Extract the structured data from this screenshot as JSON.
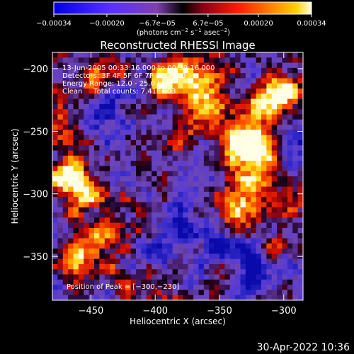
{
  "chart_data": {
    "type": "heatmap",
    "title": "Reconstructed RHESSI Image",
    "xlabel": "Heliocentric X (arcsec)",
    "ylabel": "Heliocentric Y (arcsec)",
    "xlim": [
      -480,
      -285
    ],
    "ylim": [
      -385,
      -187
    ],
    "x_ticks": [
      -450,
      -400,
      -350,
      -300
    ],
    "y_ticks": [
      -200,
      -250,
      -300,
      -350
    ],
    "x_tick_labels": [
      "−450",
      "−400",
      "−350",
      "−300"
    ],
    "y_tick_labels": [
      "−200",
      "−250",
      "−300",
      "−350"
    ],
    "colorbar": {
      "range": [
        -0.00034,
        0.00034
      ],
      "ticks": [
        -0.00034,
        -0.0002,
        -6.7e-05,
        6.7e-05,
        0.0002,
        0.00034
      ],
      "tick_labels": [
        "−0.00034",
        "−0.00020",
        "−6.7e−05",
        "6.7e−05",
        "0.00020",
        "0.00034"
      ],
      "unit_parts": [
        "(photons cm",
        "−2",
        " s",
        "−1",
        " asec",
        "−2",
        ")"
      ]
    },
    "annotations": [
      "13-Jun-2005 00:33:16.000 to 00:39:16.000",
      "Detectors: 3F 4F 5F 6F 7F 8F, Att 0",
      "Energy Range: 12.0 - 25.0 keV",
      "Clean     Total counts: 7.41E+03"
    ],
    "peak_label": "Position of Peak = [−300,−230]",
    "peak_position": [
      -300,
      -230
    ],
    "pixel_grid": [
      48,
      48
    ],
    "bright_sources": [
      {
        "x": -315,
        "y": -230,
        "level": 1.0
      },
      {
        "x": -300,
        "y": -218,
        "level": 0.95
      },
      {
        "x": -320,
        "y": -262,
        "level": 0.95
      },
      {
        "x": -338,
        "y": -258,
        "level": 0.9
      },
      {
        "x": -325,
        "y": -298,
        "level": 0.85
      },
      {
        "x": -340,
        "y": -315,
        "level": 0.75
      },
      {
        "x": -292,
        "y": -308,
        "level": 0.7
      },
      {
        "x": -300,
        "y": -340,
        "level": 0.65
      },
      {
        "x": -466,
        "y": -285,
        "level": 0.9
      },
      {
        "x": -456,
        "y": -300,
        "level": 0.75
      },
      {
        "x": -458,
        "y": -350,
        "level": 0.7
      },
      {
        "x": -440,
        "y": -335,
        "level": 0.55
      },
      {
        "x": -360,
        "y": -220,
        "level": 0.7
      },
      {
        "x": -380,
        "y": -205,
        "level": 0.6
      },
      {
        "x": -400,
        "y": -210,
        "level": 0.55
      },
      {
        "x": -368,
        "y": -245,
        "level": 0.5
      },
      {
        "x": -383,
        "y": -260,
        "level": 0.55
      },
      {
        "x": -440,
        "y": -207,
        "level": 0.55
      },
      {
        "x": -466,
        "y": -248,
        "level": 0.6
      },
      {
        "x": -470,
        "y": -225,
        "level": 0.55
      },
      {
        "x": -420,
        "y": -315,
        "level": 0.45
      },
      {
        "x": -395,
        "y": -370,
        "level": 0.5
      },
      {
        "x": -355,
        "y": -375,
        "level": 0.45
      },
      {
        "x": -430,
        "y": -372,
        "level": 0.4
      },
      {
        "x": -412,
        "y": -248,
        "level": 0.35
      }
    ],
    "dark_regions": [
      {
        "x": -430,
        "y": -240,
        "level": 0.55
      },
      {
        "x": -420,
        "y": -290,
        "level": 0.45
      },
      {
        "x": -350,
        "y": -340,
        "level": 0.55
      },
      {
        "x": -395,
        "y": -330,
        "level": 0.4
      },
      {
        "x": -320,
        "y": -360,
        "level": 0.4
      }
    ]
  },
  "footer": {
    "timestamp": "30-Apr-2022 10:36"
  }
}
